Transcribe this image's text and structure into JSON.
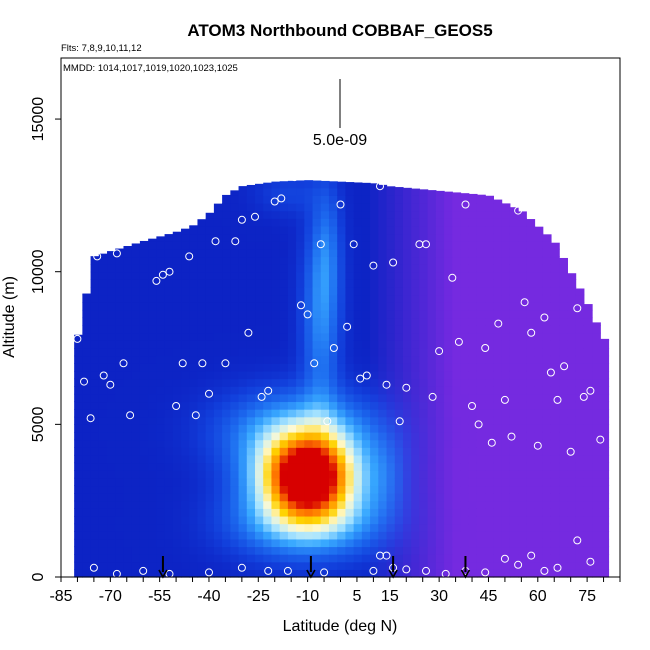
{
  "chart_data": {
    "type": "heatmap",
    "title": "ATOM3 Northbound COBBAF_GEOS5",
    "flights_line": "Flts: 7,8,9,10,11,12",
    "dates_line": "MMDD: 1014,1017,1019,1020,1023,1025",
    "xlabel": "Latitude (deg N)",
    "ylabel": "Altitude (m)",
    "xlim": [
      -85,
      85
    ],
    "ylim": [
      0,
      17000
    ],
    "x_ticks": [
      -85,
      -70,
      -55,
      -40,
      -25,
      -10,
      5,
      15,
      30,
      45,
      60,
      75
    ],
    "y_ticks": [
      0,
      5000,
      10000,
      15000
    ],
    "scale_label": "5.0e-09",
    "arrows_lat": [
      -54,
      -9,
      16,
      38
    ],
    "profile": {
      "x": [
        -80,
        -75,
        -60,
        -50,
        -45,
        -40,
        -35,
        -30,
        -20,
        -10,
        0,
        10,
        15,
        25,
        35,
        45,
        55,
        65,
        75,
        80
      ],
      "top": [
        7800,
        10500,
        11000,
        11300,
        11500,
        11900,
        12500,
        12800,
        12950,
        13000,
        12950,
        12900,
        12800,
        12700,
        12600,
        12500,
        12000,
        11000,
        9000,
        7800
      ]
    },
    "colorbar_stops": [
      "#0a14b8",
      "#1240dc",
      "#1e6ef0",
      "#38a8ff",
      "#a8e4ff",
      "#fffad2",
      "#ffd200",
      "#ff7800",
      "#d70000"
    ],
    "background_blend_color": "#8a2be6",
    "plumes": [
      {
        "lat": -10,
        "alt": 3300,
        "amp": 8.2,
        "sx": 11,
        "sy": 900
      },
      {
        "lat": -12,
        "alt": 4800,
        "amp": 3.0,
        "sx": 16,
        "sy": 900
      },
      {
        "lat": -10,
        "alt": 1800,
        "amp": 3.4,
        "sx": 15,
        "sy": 800
      },
      {
        "lat": -6,
        "alt": 8500,
        "amp": 2.0,
        "sx": 4,
        "sy": 2200
      },
      {
        "lat": -4,
        "alt": 10800,
        "amp": 1.1,
        "sx": 3,
        "sy": 1500
      },
      {
        "lat": -16,
        "alt": 12600,
        "amp": 0.7,
        "sx": 7,
        "sy": 500
      },
      {
        "lat": 15,
        "alt": 3300,
        "amp": 0.9,
        "sx": 5,
        "sy": 1000
      }
    ],
    "points": [
      [
        -80,
        7800
      ],
      [
        -78,
        6400
      ],
      [
        -76,
        5200
      ],
      [
        -74,
        10500
      ],
      [
        -72,
        6600
      ],
      [
        -70,
        6300
      ],
      [
        -68,
        10600
      ],
      [
        -66,
        7000
      ],
      [
        -64,
        5300
      ],
      [
        -60,
        11800
      ],
      [
        -56,
        9700
      ],
      [
        -54,
        9900
      ],
      [
        -52,
        10000
      ],
      [
        -50,
        5600
      ],
      [
        -48,
        7000
      ],
      [
        -46,
        10500
      ],
      [
        -44,
        5300
      ],
      [
        -42,
        7000
      ],
      [
        -40,
        6000
      ],
      [
        -38,
        11000
      ],
      [
        -35,
        7000
      ],
      [
        -32,
        11000
      ],
      [
        -30,
        11700
      ],
      [
        -28,
        8000
      ],
      [
        -26,
        11800
      ],
      [
        -24,
        5900
      ],
      [
        -22,
        6100
      ],
      [
        -20,
        12300
      ],
      [
        -18,
        12400
      ],
      [
        -14,
        13100
      ],
      [
        -12,
        8900
      ],
      [
        -10,
        8600
      ],
      [
        -8,
        7000
      ],
      [
        -6,
        10900
      ],
      [
        -4,
        5100
      ],
      [
        -2,
        7500
      ],
      [
        0,
        12200
      ],
      [
        2,
        8200
      ],
      [
        4,
        10900
      ],
      [
        6,
        6500
      ],
      [
        8,
        6600
      ],
      [
        10,
        10200
      ],
      [
        12,
        12800
      ],
      [
        14,
        6300
      ],
      [
        16,
        10300
      ],
      [
        18,
        5100
      ],
      [
        20,
        6200
      ],
      [
        24,
        10900
      ],
      [
        26,
        10900
      ],
      [
        28,
        5900
      ],
      [
        30,
        7400
      ],
      [
        34,
        9800
      ],
      [
        36,
        7700
      ],
      [
        38,
        12200
      ],
      [
        40,
        5600
      ],
      [
        42,
        5000
      ],
      [
        44,
        7500
      ],
      [
        46,
        4400
      ],
      [
        48,
        8300
      ],
      [
        50,
        5800
      ],
      [
        52,
        4600
      ],
      [
        54,
        12000
      ],
      [
        56,
        9000
      ],
      [
        58,
        8000
      ],
      [
        60,
        4300
      ],
      [
        62,
        8500
      ],
      [
        64,
        6700
      ],
      [
        66,
        5800
      ],
      [
        68,
        6900
      ],
      [
        70,
        4100
      ],
      [
        72,
        8800
      ],
      [
        74,
        5900
      ],
      [
        76,
        6100
      ],
      [
        78,
        9300
      ],
      [
        79,
        4500
      ],
      [
        -75,
        300
      ],
      [
        -68,
        100
      ],
      [
        -60,
        200
      ],
      [
        -52,
        100
      ],
      [
        -40,
        150
      ],
      [
        -30,
        300
      ],
      [
        -22,
        200
      ],
      [
        -16,
        200
      ],
      [
        -5,
        150
      ],
      [
        10,
        200
      ],
      [
        12,
        700
      ],
      [
        16,
        300
      ],
      [
        20,
        250
      ],
      [
        26,
        200
      ],
      [
        32,
        100
      ],
      [
        38,
        200
      ],
      [
        44,
        150
      ],
      [
        50,
        600
      ],
      [
        54,
        400
      ],
      [
        58,
        700
      ],
      [
        62,
        200
      ],
      [
        66,
        300
      ],
      [
        72,
        1200
      ],
      [
        76,
        500
      ],
      [
        14,
        700
      ]
    ]
  }
}
